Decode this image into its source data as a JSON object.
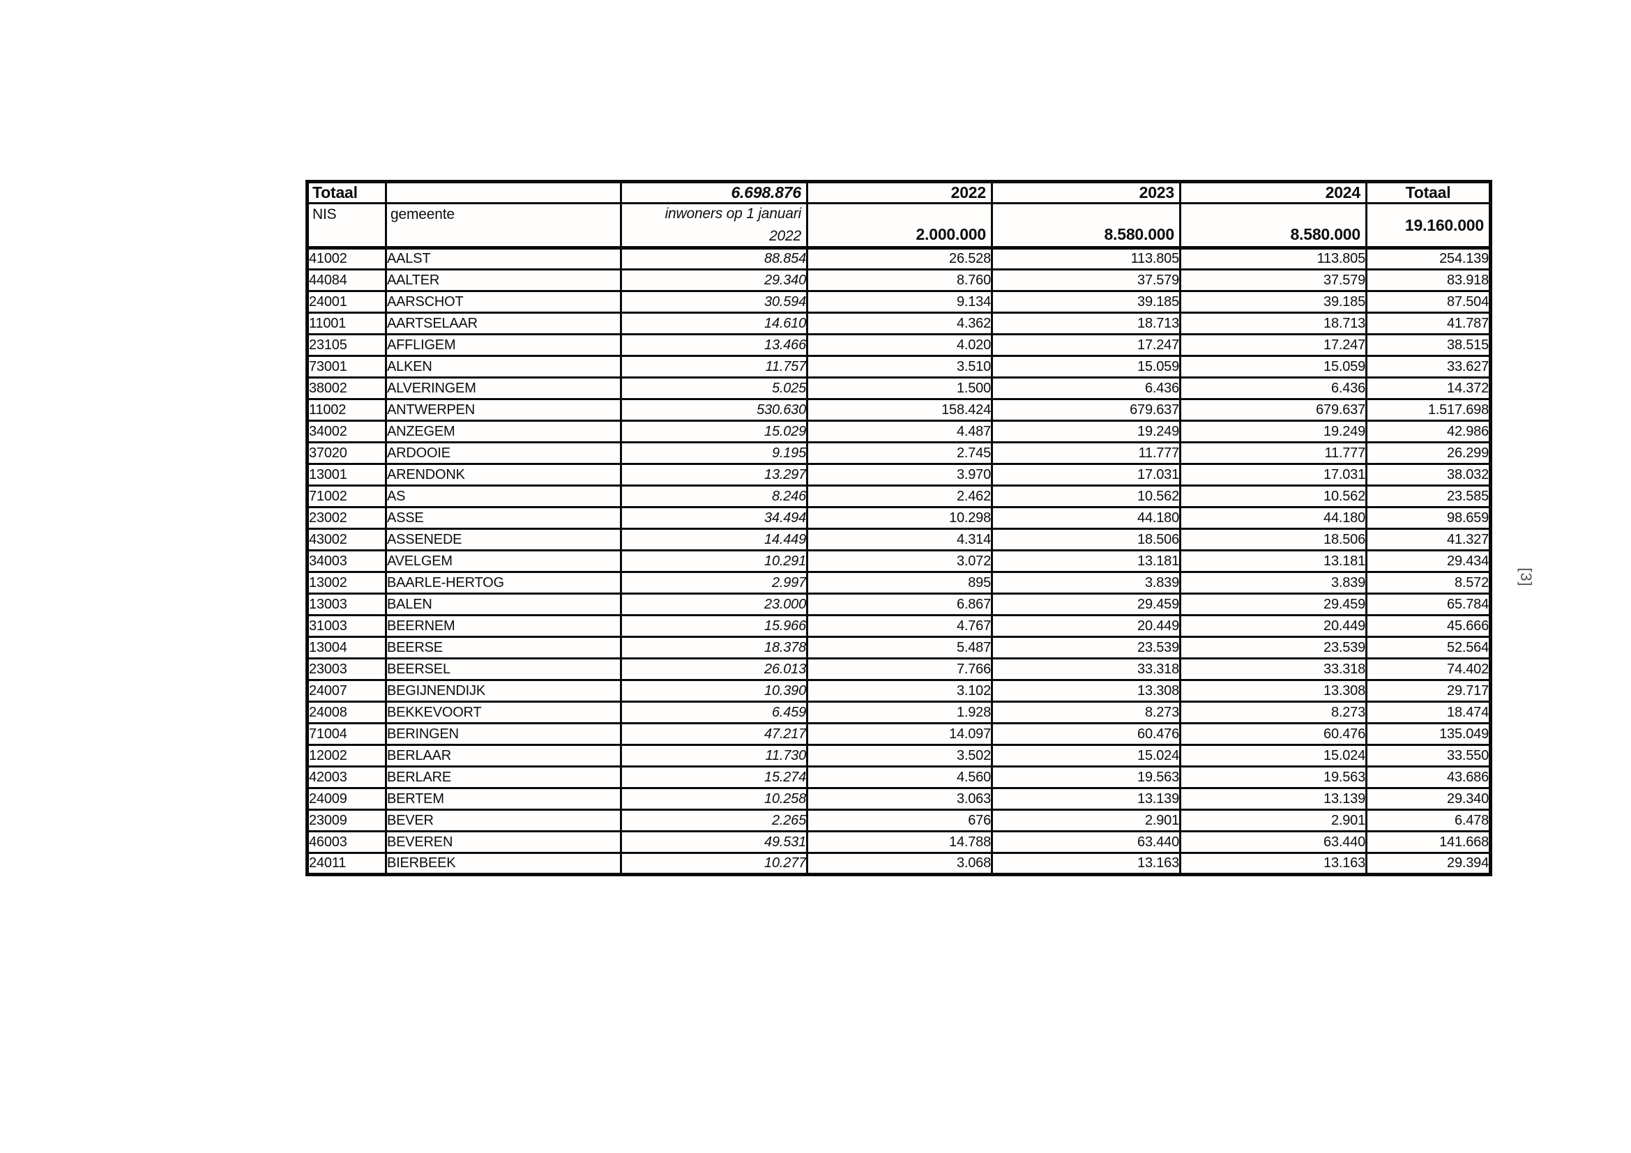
{
  "page": {
    "marker": "[3]"
  },
  "table": {
    "header_row1": {
      "label_left": "Totaal",
      "empty": "",
      "grand_total_inwoners": "6.698.876",
      "year_2022": "2022",
      "year_2023": "2023",
      "year_2024": "2024",
      "label_right": "Totaal"
    },
    "header_row2": {
      "nis_label": "NIS",
      "gemeente_label": "gemeente",
      "inwoners_label_line1": "inwoners op 1 januari",
      "inwoners_label_line2": "2022",
      "total_2022": "2.000.000",
      "total_2023": "8.580.000",
      "total_2024": "8.580.000",
      "total_all": "19.160.000"
    },
    "rows": [
      {
        "nis": "41002",
        "gemeente": "AALST",
        "inwoners": "88.854",
        "y2022": "26.528",
        "y2023": "113.805",
        "y2024": "113.805",
        "totaal": "254.139"
      },
      {
        "nis": "44084",
        "gemeente": "AALTER",
        "inwoners": "29.340",
        "y2022": "8.760",
        "y2023": "37.579",
        "y2024": "37.579",
        "totaal": "83.918"
      },
      {
        "nis": "24001",
        "gemeente": "AARSCHOT",
        "inwoners": "30.594",
        "y2022": "9.134",
        "y2023": "39.185",
        "y2024": "39.185",
        "totaal": "87.504"
      },
      {
        "nis": "11001",
        "gemeente": "AARTSELAAR",
        "inwoners": "14.610",
        "y2022": "4.362",
        "y2023": "18.713",
        "y2024": "18.713",
        "totaal": "41.787"
      },
      {
        "nis": "23105",
        "gemeente": "AFFLIGEM",
        "inwoners": "13.466",
        "y2022": "4.020",
        "y2023": "17.247",
        "y2024": "17.247",
        "totaal": "38.515"
      },
      {
        "nis": "73001",
        "gemeente": "ALKEN",
        "inwoners": "11.757",
        "y2022": "3.510",
        "y2023": "15.059",
        "y2024": "15.059",
        "totaal": "33.627"
      },
      {
        "nis": "38002",
        "gemeente": "ALVERINGEM",
        "inwoners": "5.025",
        "y2022": "1.500",
        "y2023": "6.436",
        "y2024": "6.436",
        "totaal": "14.372"
      },
      {
        "nis": "11002",
        "gemeente": "ANTWERPEN",
        "inwoners": "530.630",
        "y2022": "158.424",
        "y2023": "679.637",
        "y2024": "679.637",
        "totaal": "1.517.698"
      },
      {
        "nis": "34002",
        "gemeente": "ANZEGEM",
        "inwoners": "15.029",
        "y2022": "4.487",
        "y2023": "19.249",
        "y2024": "19.249",
        "totaal": "42.986"
      },
      {
        "nis": "37020",
        "gemeente": "ARDOOIE",
        "inwoners": "9.195",
        "y2022": "2.745",
        "y2023": "11.777",
        "y2024": "11.777",
        "totaal": "26.299"
      },
      {
        "nis": "13001",
        "gemeente": "ARENDONK",
        "inwoners": "13.297",
        "y2022": "3.970",
        "y2023": "17.031",
        "y2024": "17.031",
        "totaal": "38.032"
      },
      {
        "nis": "71002",
        "gemeente": "AS",
        "inwoners": "8.246",
        "y2022": "2.462",
        "y2023": "10.562",
        "y2024": "10.562",
        "totaal": "23.585"
      },
      {
        "nis": "23002",
        "gemeente": "ASSE",
        "inwoners": "34.494",
        "y2022": "10.298",
        "y2023": "44.180",
        "y2024": "44.180",
        "totaal": "98.659"
      },
      {
        "nis": "43002",
        "gemeente": "ASSENEDE",
        "inwoners": "14.449",
        "y2022": "4.314",
        "y2023": "18.506",
        "y2024": "18.506",
        "totaal": "41.327"
      },
      {
        "nis": "34003",
        "gemeente": "AVELGEM",
        "inwoners": "10.291",
        "y2022": "3.072",
        "y2023": "13.181",
        "y2024": "13.181",
        "totaal": "29.434"
      },
      {
        "nis": "13002",
        "gemeente": "BAARLE-HERTOG",
        "inwoners": "2.997",
        "y2022": "895",
        "y2023": "3.839",
        "y2024": "3.839",
        "totaal": "8.572"
      },
      {
        "nis": "13003",
        "gemeente": "BALEN",
        "inwoners": "23.000",
        "y2022": "6.867",
        "y2023": "29.459",
        "y2024": "29.459",
        "totaal": "65.784"
      },
      {
        "nis": "31003",
        "gemeente": "BEERNEM",
        "inwoners": "15.966",
        "y2022": "4.767",
        "y2023": "20.449",
        "y2024": "20.449",
        "totaal": "45.666"
      },
      {
        "nis": "13004",
        "gemeente": "BEERSE",
        "inwoners": "18.378",
        "y2022": "5.487",
        "y2023": "23.539",
        "y2024": "23.539",
        "totaal": "52.564"
      },
      {
        "nis": "23003",
        "gemeente": "BEERSEL",
        "inwoners": "26.013",
        "y2022": "7.766",
        "y2023": "33.318",
        "y2024": "33.318",
        "totaal": "74.402"
      },
      {
        "nis": "24007",
        "gemeente": "BEGIJNENDIJK",
        "inwoners": "10.390",
        "y2022": "3.102",
        "y2023": "13.308",
        "y2024": "13.308",
        "totaal": "29.717"
      },
      {
        "nis": "24008",
        "gemeente": "BEKKEVOORT",
        "inwoners": "6.459",
        "y2022": "1.928",
        "y2023": "8.273",
        "y2024": "8.273",
        "totaal": "18.474"
      },
      {
        "nis": "71004",
        "gemeente": "BERINGEN",
        "inwoners": "47.217",
        "y2022": "14.097",
        "y2023": "60.476",
        "y2024": "60.476",
        "totaal": "135.049"
      },
      {
        "nis": "12002",
        "gemeente": "BERLAAR",
        "inwoners": "11.730",
        "y2022": "3.502",
        "y2023": "15.024",
        "y2024": "15.024",
        "totaal": "33.550"
      },
      {
        "nis": "42003",
        "gemeente": "BERLARE",
        "inwoners": "15.274",
        "y2022": "4.560",
        "y2023": "19.563",
        "y2024": "19.563",
        "totaal": "43.686"
      },
      {
        "nis": "24009",
        "gemeente": "BERTEM",
        "inwoners": "10.258",
        "y2022": "3.063",
        "y2023": "13.139",
        "y2024": "13.139",
        "totaal": "29.340"
      },
      {
        "nis": "23009",
        "gemeente": "BEVER",
        "inwoners": "2.265",
        "y2022": "676",
        "y2023": "2.901",
        "y2024": "2.901",
        "totaal": "6.478"
      },
      {
        "nis": "46003",
        "gemeente": "BEVEREN",
        "inwoners": "49.531",
        "y2022": "14.788",
        "y2023": "63.440",
        "y2024": "63.440",
        "totaal": "141.668"
      },
      {
        "nis": "24011",
        "gemeente": "BIERBEEK",
        "inwoners": "10.277",
        "y2022": "3.068",
        "y2023": "13.163",
        "y2024": "13.163",
        "totaal": "29.394"
      }
    ]
  }
}
